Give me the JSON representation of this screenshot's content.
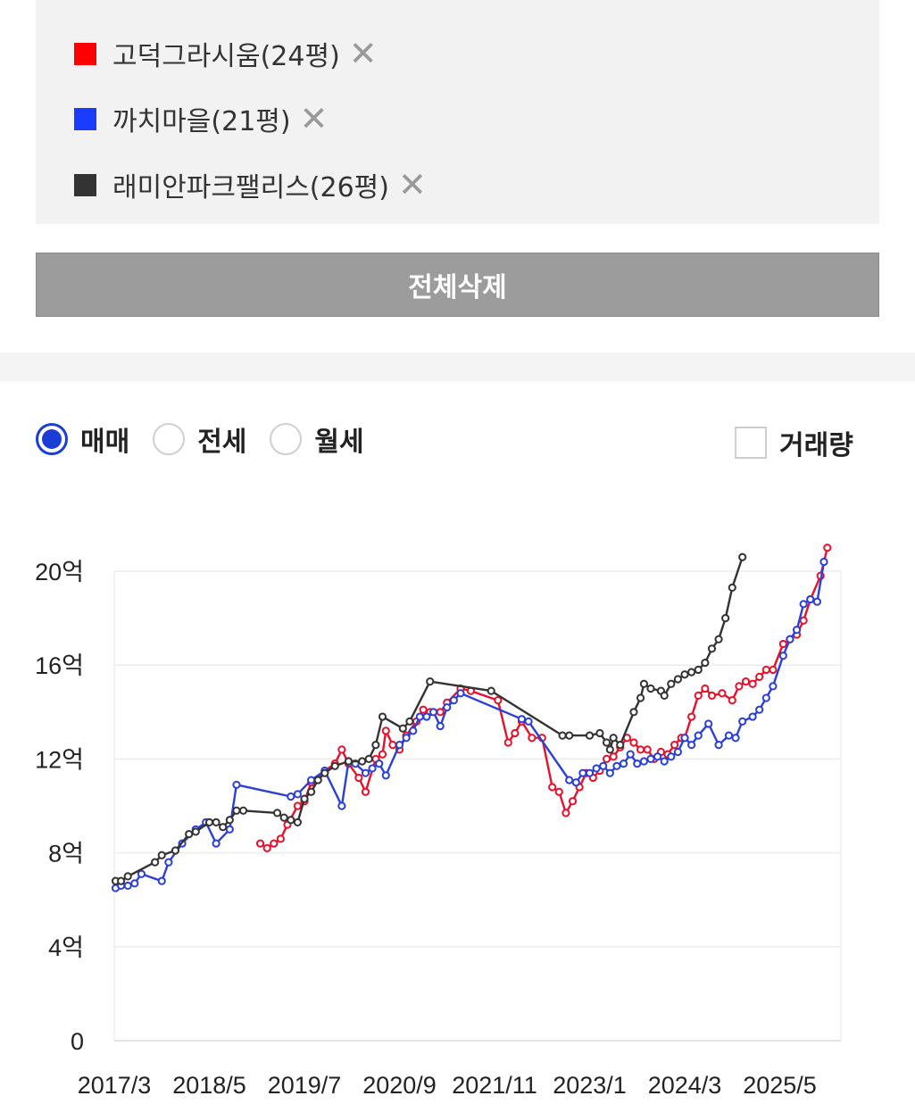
{
  "legend": {
    "items": [
      {
        "label": "고덕그라시움(24평)",
        "color": "#ff0000",
        "remove": "✕"
      },
      {
        "label": "까치마을(21평)",
        "color": "#1a3cff",
        "remove": "✕"
      },
      {
        "label": "래미안파크팰리스(26평)",
        "color": "#333333",
        "remove": "✕"
      }
    ]
  },
  "delete_all_label": "전체삭제",
  "trade_types": {
    "options": [
      "매매",
      "전세",
      "월세"
    ],
    "selected": "매매"
  },
  "volume_label": "거래량",
  "chart_data": {
    "type": "line",
    "title": "",
    "xlabel": "",
    "ylabel": "",
    "x_ticks": [
      "2017/3",
      "2018/5",
      "2019/7",
      "2020/9",
      "2021/11",
      "2023/1",
      "2024/3",
      "2025/5"
    ],
    "y_ticks": [
      "0",
      "4억",
      "8억",
      "12억",
      "16억",
      "20억"
    ],
    "x_unit": "months since 2017/3 (2017/3 = 0, 2018/5 = 14, …, 2025/5 = 98)",
    "xlim": [
      0,
      107
    ],
    "ylim": [
      0,
      20
    ],
    "grid": true,
    "series": [
      {
        "name": "고덕그라시움(24평)",
        "color": "#e8102a",
        "points": [
          [
            21.5,
            8.4
          ],
          [
            22.5,
            8.2
          ],
          [
            23.5,
            8.4
          ],
          [
            24.5,
            8.6
          ],
          [
            25.5,
            9.2
          ],
          [
            27.0,
            10.0
          ],
          [
            28.0,
            10.2
          ],
          [
            29.0,
            11.0
          ],
          [
            31.0,
            11.5
          ],
          [
            32.5,
            11.8
          ],
          [
            33.5,
            12.4
          ],
          [
            34.5,
            11.8
          ],
          [
            36.0,
            11.2
          ],
          [
            37.0,
            10.6
          ],
          [
            38.5,
            12.0
          ],
          [
            39.5,
            12.2
          ],
          [
            40.0,
            13.2
          ],
          [
            41.0,
            12.6
          ],
          [
            42.0,
            12.4
          ],
          [
            43.0,
            13.0
          ],
          [
            44.5,
            13.6
          ],
          [
            45.5,
            14.1
          ],
          [
            46.5,
            14.0
          ],
          [
            48.0,
            14.0
          ],
          [
            49.0,
            14.4
          ],
          [
            51.0,
            15.0
          ],
          [
            52.5,
            14.9
          ],
          [
            56.5,
            14.5
          ],
          [
            58.0,
            12.7
          ],
          [
            59.0,
            13.1
          ],
          [
            60.0,
            13.6
          ],
          [
            61.5,
            12.9
          ],
          [
            63.0,
            12.9
          ],
          [
            64.5,
            10.8
          ],
          [
            65.5,
            10.6
          ],
          [
            66.5,
            9.7
          ],
          [
            67.5,
            10.2
          ],
          [
            68.5,
            10.8
          ],
          [
            69.5,
            11.4
          ],
          [
            70.5,
            11.2
          ],
          [
            71.5,
            11.5
          ],
          [
            72.5,
            12.0
          ],
          [
            73.5,
            12.1
          ],
          [
            74.5,
            12.5
          ],
          [
            75.5,
            12.9
          ],
          [
            76.5,
            12.7
          ],
          [
            77.5,
            12.4
          ],
          [
            78.5,
            12.4
          ],
          [
            79.5,
            12.0
          ],
          [
            80.5,
            12.3
          ],
          [
            81.5,
            12.2
          ],
          [
            82.5,
            12.6
          ],
          [
            83.5,
            12.9
          ],
          [
            84.0,
            12.9
          ],
          [
            85.0,
            13.8
          ],
          [
            86.0,
            14.7
          ],
          [
            87.0,
            15.0
          ],
          [
            88.0,
            14.7
          ],
          [
            89.5,
            14.8
          ],
          [
            91.0,
            14.5
          ],
          [
            92.0,
            15.1
          ],
          [
            93.0,
            15.3
          ],
          [
            94.0,
            15.2
          ],
          [
            95.0,
            15.5
          ],
          [
            96.0,
            15.8
          ],
          [
            97.0,
            15.8
          ],
          [
            98.5,
            16.9
          ],
          [
            99.5,
            17.1
          ],
          [
            100.5,
            17.3
          ],
          [
            101.5,
            17.9
          ],
          [
            102.5,
            18.8
          ],
          [
            104.0,
            19.8
          ],
          [
            105.0,
            21.0
          ]
        ]
      },
      {
        "name": "까치마을(21평)",
        "color": "#2a3fd8",
        "points": [
          [
            0.2,
            6.5
          ],
          [
            1.0,
            6.6
          ],
          [
            2.0,
            6.6
          ],
          [
            3.0,
            6.7
          ],
          [
            4.0,
            7.1
          ],
          [
            7.0,
            6.8
          ],
          [
            8.0,
            7.6
          ],
          [
            10.0,
            8.4
          ],
          [
            12.0,
            9.0
          ],
          [
            13.5,
            9.3
          ],
          [
            15.0,
            8.4
          ],
          [
            17.0,
            9.0
          ],
          [
            18.0,
            10.9
          ],
          [
            26.0,
            10.4
          ],
          [
            27.0,
            10.5
          ],
          [
            29.0,
            11.1
          ],
          [
            31.0,
            11.5
          ],
          [
            33.5,
            10.0
          ],
          [
            34.5,
            11.9
          ],
          [
            35.5,
            11.8
          ],
          [
            37.0,
            11.4
          ],
          [
            38.0,
            11.6
          ],
          [
            39.0,
            11.8
          ],
          [
            40.0,
            11.3
          ],
          [
            42.0,
            12.6
          ],
          [
            43.0,
            12.9
          ],
          [
            44.0,
            13.2
          ],
          [
            45.0,
            13.8
          ],
          [
            46.0,
            13.8
          ],
          [
            47.0,
            14.0
          ],
          [
            48.0,
            13.4
          ],
          [
            49.0,
            14.2
          ],
          [
            50.0,
            14.5
          ],
          [
            51.0,
            14.8
          ],
          [
            60.0,
            13.7
          ],
          [
            61.0,
            13.6
          ],
          [
            67.0,
            11.1
          ],
          [
            68.0,
            11.0
          ],
          [
            69.0,
            11.4
          ],
          [
            70.0,
            11.4
          ],
          [
            71.0,
            11.6
          ],
          [
            72.0,
            11.7
          ],
          [
            73.0,
            11.4
          ],
          [
            74.0,
            11.7
          ],
          [
            75.0,
            11.8
          ],
          [
            76.0,
            12.2
          ],
          [
            77.0,
            11.8
          ],
          [
            78.0,
            11.9
          ],
          [
            79.0,
            12.0
          ],
          [
            80.0,
            12.1
          ],
          [
            81.0,
            11.9
          ],
          [
            82.0,
            12.1
          ],
          [
            83.0,
            12.3
          ],
          [
            84.0,
            12.9
          ],
          [
            85.0,
            12.6
          ],
          [
            86.0,
            13.0
          ],
          [
            87.5,
            13.5
          ],
          [
            89.0,
            12.6
          ],
          [
            90.5,
            13.0
          ],
          [
            91.5,
            12.9
          ],
          [
            92.5,
            13.6
          ],
          [
            94.0,
            13.8
          ],
          [
            95.0,
            14.1
          ],
          [
            96.0,
            14.6
          ],
          [
            97.0,
            15.1
          ],
          [
            98.5,
            16.4
          ],
          [
            99.5,
            17.1
          ],
          [
            100.5,
            17.5
          ],
          [
            101.5,
            18.6
          ],
          [
            102.5,
            18.8
          ],
          [
            103.5,
            18.7
          ],
          [
            104.5,
            20.4
          ]
        ]
      },
      {
        "name": "래미안파크팰리스(26평)",
        "color": "#333333",
        "points": [
          [
            0.2,
            6.8
          ],
          [
            1.0,
            6.8
          ],
          [
            2.0,
            7.0
          ],
          [
            6.0,
            7.6
          ],
          [
            7.0,
            7.9
          ],
          [
            9.0,
            8.1
          ],
          [
            11.0,
            8.8
          ],
          [
            12.0,
            8.9
          ],
          [
            14.0,
            9.3
          ],
          [
            15.0,
            9.3
          ],
          [
            16.0,
            9.1
          ],
          [
            17.0,
            9.4
          ],
          [
            18.0,
            9.8
          ],
          [
            19.0,
            9.8
          ],
          [
            24.0,
            9.7
          ],
          [
            25.0,
            9.5
          ],
          [
            26.0,
            9.4
          ],
          [
            27.0,
            9.3
          ],
          [
            28.0,
            10.3
          ],
          [
            29.0,
            10.6
          ],
          [
            30.0,
            11.1
          ],
          [
            31.0,
            11.4
          ],
          [
            32.5,
            11.7
          ],
          [
            34.5,
            11.9
          ],
          [
            36.5,
            11.9
          ],
          [
            37.5,
            12.0
          ],
          [
            38.5,
            12.6
          ],
          [
            39.5,
            13.8
          ],
          [
            42.5,
            13.3
          ],
          [
            43.5,
            13.6
          ],
          [
            46.5,
            15.3
          ],
          [
            55.5,
            14.9
          ],
          [
            66.0,
            13.0
          ],
          [
            67.0,
            13.0
          ],
          [
            70.0,
            13.0
          ],
          [
            71.5,
            13.1
          ],
          [
            72.5,
            12.7
          ],
          [
            73.0,
            12.4
          ],
          [
            73.5,
            12.9
          ],
          [
            74.5,
            12.6
          ],
          [
            76.5,
            14.0
          ],
          [
            77.5,
            14.6
          ],
          [
            78.0,
            15.2
          ],
          [
            79.0,
            15.0
          ],
          [
            80.5,
            14.9
          ],
          [
            81.0,
            14.7
          ],
          [
            82.0,
            15.2
          ],
          [
            83.0,
            15.4
          ],
          [
            84.0,
            15.6
          ],
          [
            85.0,
            15.7
          ],
          [
            86.0,
            15.8
          ],
          [
            87.0,
            16.1
          ],
          [
            88.0,
            16.7
          ],
          [
            89.0,
            17.1
          ],
          [
            90.0,
            18.0
          ],
          [
            91.0,
            19.3
          ],
          [
            92.5,
            20.6
          ]
        ]
      }
    ]
  }
}
